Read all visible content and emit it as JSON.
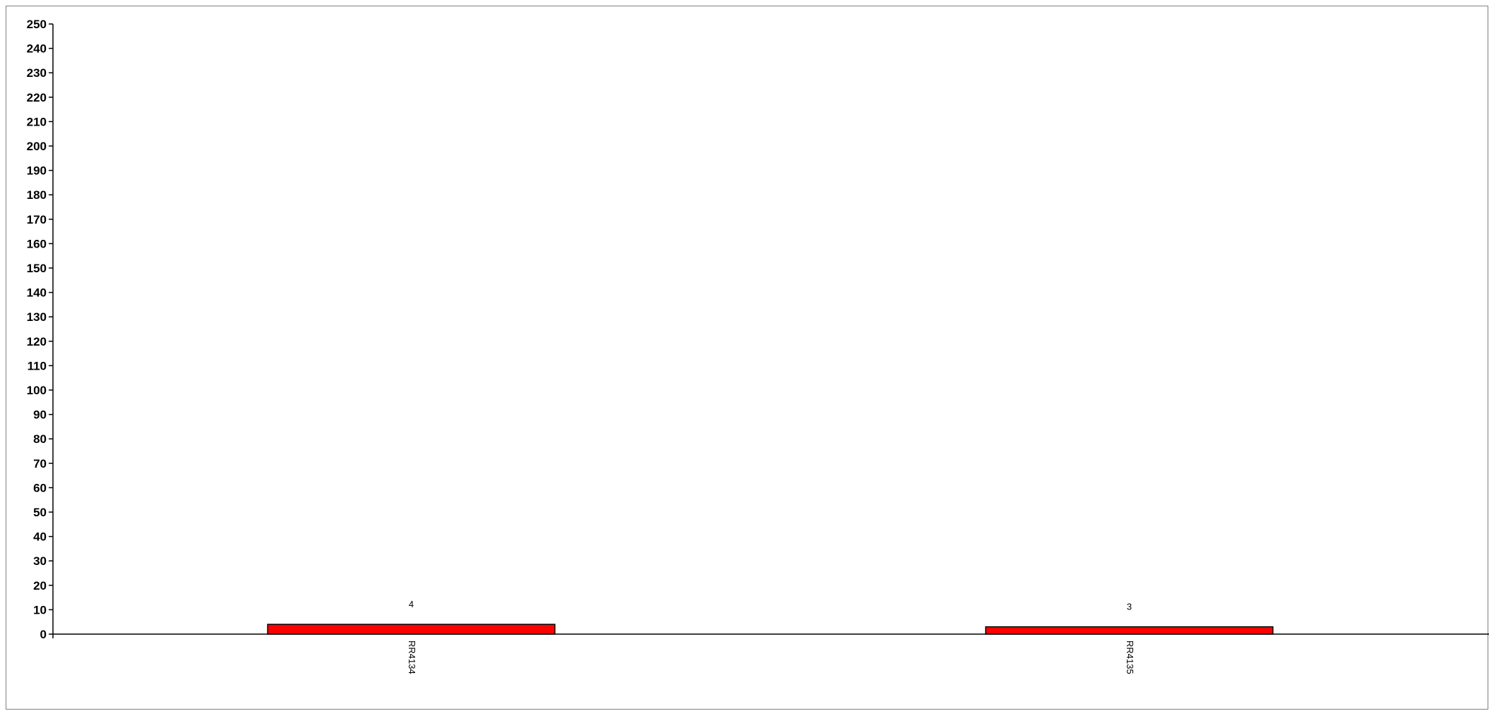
{
  "chart_data": {
    "type": "bar",
    "title": "",
    "xlabel": "",
    "ylabel": "",
    "categories": [
      "RR4134",
      "RR4135"
    ],
    "series": [
      {
        "values": [
          4,
          3
        ]
      }
    ],
    "data_labels": [
      "4",
      "3"
    ],
    "ylim": [
      0,
      250
    ],
    "y_ticks": [
      "0",
      "10",
      "20",
      "30",
      "40",
      "50",
      "60",
      "70",
      "80",
      "90",
      "100",
      "110",
      "120",
      "130",
      "140",
      "150",
      "160",
      "170",
      "180",
      "190",
      "200",
      "210",
      "220",
      "230",
      "240",
      "250"
    ],
    "grid": false,
    "legend": "none",
    "bar_color": "#ff0000",
    "bar_edge_color": "#000000"
  }
}
